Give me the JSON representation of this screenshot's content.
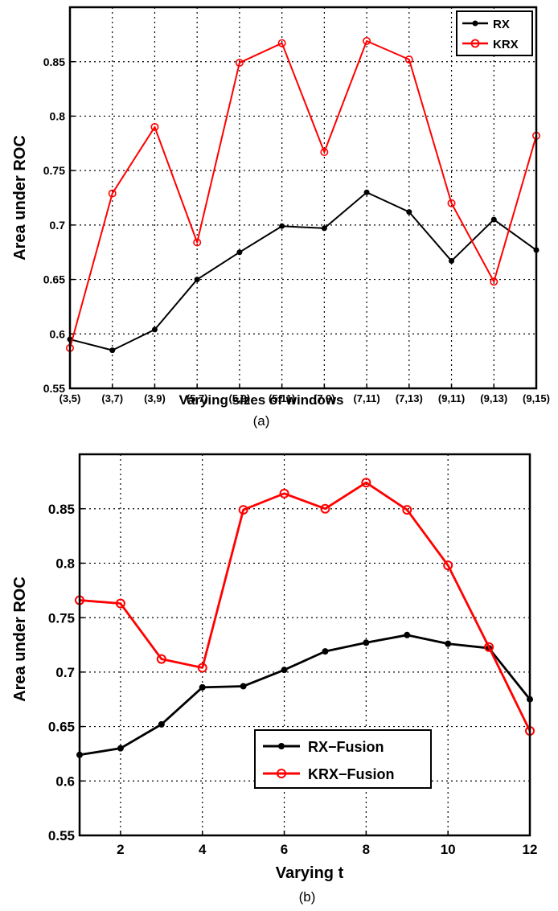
{
  "chart_data": [
    {
      "type": "line",
      "panel": "(a)",
      "xlabel": "Varying sizes of windows",
      "ylabel": "Area under ROC",
      "ylim": [
        0.55,
        0.9
      ],
      "yticks": [
        "0.55",
        "0.6",
        "0.65",
        "0.7",
        "0.75",
        "0.8",
        "0.85"
      ],
      "categories": [
        "(3,5)",
        "(3,7)",
        "(3,9)",
        "(5,7)",
        "(5,9)",
        "(5,11)",
        "(7.9)",
        "(7,11)",
        "(7,13)",
        "(9,11)",
        "(9,13)",
        "(9,15)"
      ],
      "grid": true,
      "legend_position": "top-right",
      "series": [
        {
          "name": "RX",
          "color": "#000000",
          "marker": "dot",
          "values": [
            0.595,
            0.585,
            0.604,
            0.65,
            0.675,
            0.699,
            0.697,
            0.73,
            0.712,
            0.667,
            0.705,
            0.677
          ]
        },
        {
          "name": "KRX",
          "color": "#ff0000",
          "marker": "circle",
          "values": [
            0.587,
            0.729,
            0.79,
            0.684,
            0.849,
            0.867,
            0.767,
            0.869,
            0.852,
            0.72,
            0.648,
            0.782
          ]
        }
      ]
    },
    {
      "type": "line",
      "panel": "(b)",
      "xlabel": "Varying t",
      "ylabel": "Area under ROC",
      "xlim": [
        1,
        12
      ],
      "ylim": [
        0.55,
        0.9
      ],
      "xticks": [
        2,
        4,
        6,
        8,
        10,
        12
      ],
      "yticks": [
        "0.55",
        "0.6",
        "0.65",
        "0.7",
        "0.75",
        "0.8",
        "0.85"
      ],
      "x": [
        1,
        2,
        3,
        4,
        5,
        6,
        7,
        8,
        9,
        10,
        11,
        12
      ],
      "grid": true,
      "legend_position": "bottom-center",
      "series": [
        {
          "name": "RX−Fusion",
          "color": "#000000",
          "marker": "dot",
          "values": [
            0.624,
            0.63,
            0.652,
            0.686,
            0.687,
            0.702,
            0.719,
            0.727,
            0.734,
            0.726,
            0.722,
            0.675
          ]
        },
        {
          "name": "KRX−Fusion",
          "color": "#ff0000",
          "marker": "circle",
          "values": [
            0.766,
            0.763,
            0.712,
            0.704,
            0.849,
            0.864,
            0.85,
            0.874,
            0.849,
            0.798,
            0.723,
            0.646
          ]
        }
      ]
    }
  ]
}
